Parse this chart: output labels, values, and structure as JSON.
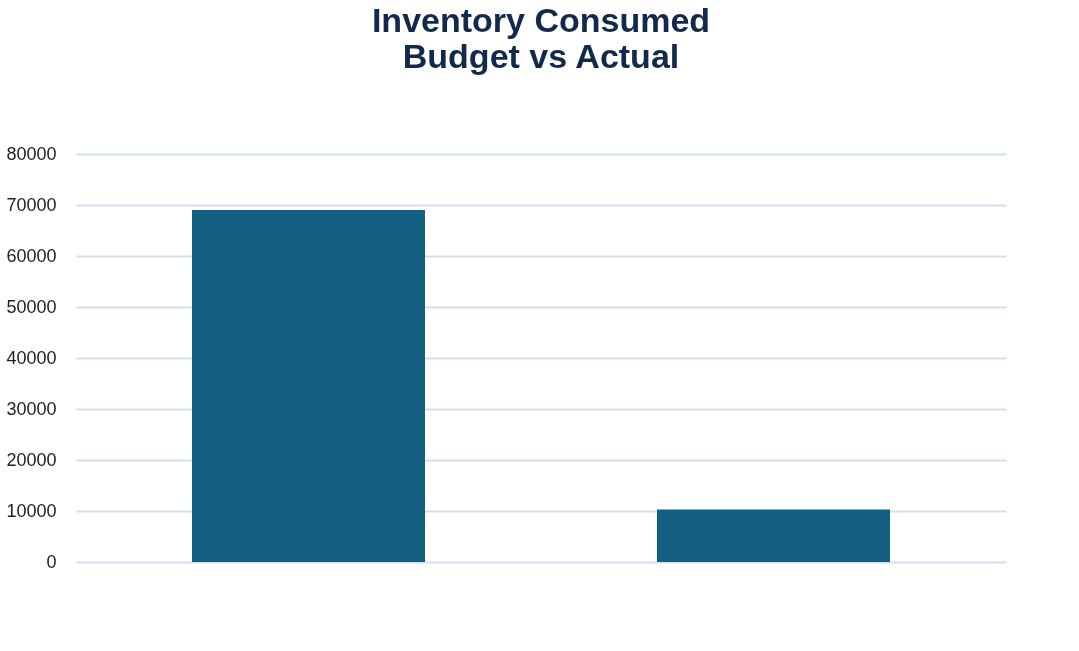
{
  "chart_data": {
    "type": "bar",
    "title": "Inventory Consumed\nBudget vs Actual",
    "categories": [
      null,
      null
    ],
    "values": [
      69000,
      10300
    ],
    "color": "#125f82",
    "ylim": [
      0,
      80000
    ],
    "yticks": [
      0,
      10000,
      20000,
      30000,
      40000,
      50000,
      60000,
      70000,
      80000
    ],
    "grid": "y"
  }
}
